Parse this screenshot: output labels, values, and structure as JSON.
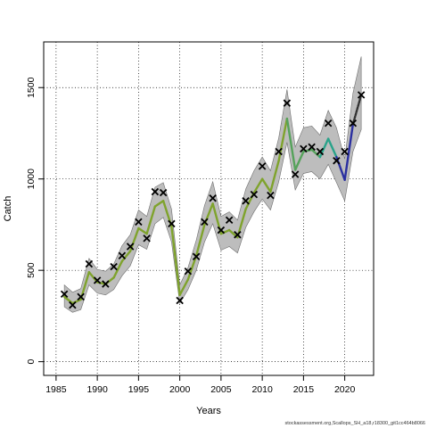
{
  "chart_data": {
    "type": "line",
    "title": "",
    "xlabel": "Years",
    "ylabel": "Catch",
    "xlim": [
      1983.5,
      2023.5
    ],
    "ylim": [
      -75,
      1750
    ],
    "x_ticks": [
      1985,
      1990,
      1995,
      2000,
      2005,
      2010,
      2015,
      2020
    ],
    "y_ticks": [
      0,
      500,
      1000,
      1500
    ],
    "grid": true,
    "grid_style": "dotted",
    "credit": "stockassessment.org,Scallops_SH_a18,r18300_git1cc464b8066",
    "observed": {
      "marker": "x",
      "x": [
        1986,
        1987,
        1988,
        1989,
        1990,
        1991,
        1992,
        1993,
        1994,
        1995,
        1996,
        1997,
        1998,
        1999,
        2000,
        2001,
        2002,
        2003,
        2004,
        2005,
        2006,
        2007,
        2008,
        2009,
        2010,
        2011,
        2012,
        2013,
        2014,
        2015,
        2016,
        2017,
        2018,
        2019,
        2020,
        2021,
        2022
      ],
      "y": [
        370,
        310,
        355,
        535,
        445,
        425,
        520,
        580,
        630,
        765,
        675,
        930,
        925,
        755,
        335,
        495,
        575,
        765,
        895,
        720,
        775,
        695,
        880,
        915,
        1070,
        910,
        1150,
        1415,
        1025,
        1165,
        1175,
        1150,
        1305,
        1100,
        1150,
        1305,
        1460
      ]
    },
    "fit": {
      "x": [
        1986,
        1987,
        1988,
        1989,
        1990,
        1991,
        1992,
        1993,
        1994,
        1995,
        1996,
        1997,
        1998,
        1999,
        2000,
        2001,
        2002,
        2003,
        2004,
        2005,
        2006,
        2007,
        2008,
        2009,
        2010,
        2011,
        2012,
        2013,
        2014,
        2015,
        2016,
        2017,
        2018,
        2019,
        2020,
        2021,
        2022
      ],
      "y": [
        355,
        320,
        340,
        490,
        435,
        425,
        460,
        550,
        605,
        730,
        700,
        850,
        880,
        740,
        365,
        450,
        580,
        750,
        865,
        700,
        720,
        680,
        835,
        925,
        1000,
        930,
        1100,
        1330,
        1050,
        1150,
        1160,
        1120,
        1220,
        1120,
        995,
        1300,
        1460
      ],
      "lower": [
        300,
        270,
        285,
        420,
        375,
        365,
        395,
        470,
        525,
        640,
        615,
        755,
        790,
        655,
        320,
        395,
        500,
        655,
        755,
        610,
        630,
        595,
        735,
        820,
        890,
        830,
        985,
        1200,
        940,
        1030,
        1040,
        1000,
        1080,
        980,
        880,
        1150,
        1270
      ],
      "upper": [
        420,
        380,
        400,
        565,
        505,
        495,
        535,
        635,
        695,
        830,
        795,
        955,
        980,
        835,
        420,
        515,
        665,
        855,
        985,
        795,
        820,
        775,
        945,
        1045,
        1120,
        1045,
        1225,
        1490,
        1175,
        1280,
        1290,
        1240,
        1375,
        1280,
        1110,
        1470,
        1670
      ]
    },
    "fit_colors": [
      {
        "from": 1986,
        "to": 2013,
        "color": "#7fa32d"
      },
      {
        "from": 2013,
        "to": 2017,
        "color": "#56a25b"
      },
      {
        "from": 2017,
        "to": 2019,
        "color": "#2aa38a"
      },
      {
        "from": 2019,
        "to": 2021,
        "color": "#2a2fa0"
      },
      {
        "from": 2021,
        "to": 2022,
        "color": "#333333"
      }
    ],
    "band_color": "#bdbdbd",
    "band_edge_color": "#6e6e6e"
  }
}
